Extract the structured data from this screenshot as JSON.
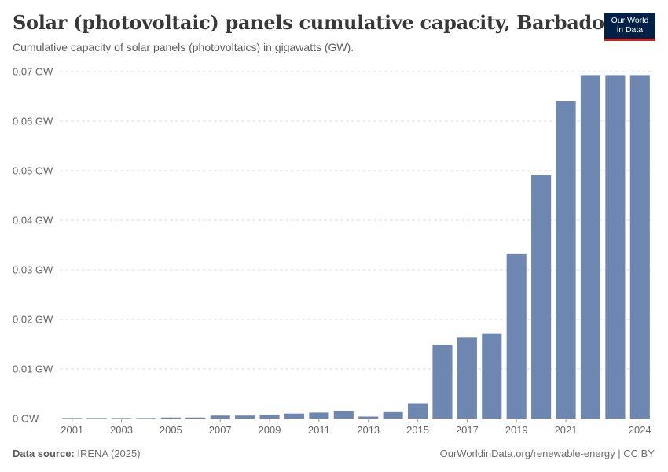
{
  "header": {
    "title": "Solar (photovoltaic) panels cumulative capacity, Barbados",
    "subtitle": "Cumulative capacity of solar panels (photovoltaics) in gigawatts (GW)."
  },
  "logo": {
    "line1": "Our World",
    "line2": "in Data",
    "bg_color": "#002147",
    "accent_color": "#ce261e"
  },
  "footer": {
    "source_label": "Data source:",
    "source_value": "IRENA (2025)",
    "right_text": "OurWorldinData.org/renewable-energy | CC BY"
  },
  "colors": {
    "bar": "#6d87b0",
    "grid": "#dddddd",
    "text": "#666666"
  },
  "chart_data": {
    "type": "bar",
    "title": "Solar (photovoltaic) panels cumulative capacity, Barbados",
    "xlabel": "",
    "ylabel": "",
    "unit": "GW",
    "ylim": [
      0,
      0.07
    ],
    "yticks": [
      0,
      0.01,
      0.02,
      0.03,
      0.04,
      0.05,
      0.06,
      0.07
    ],
    "ytick_labels": [
      "0 GW",
      "0.01 GW",
      "0.02 GW",
      "0.03 GW",
      "0.04 GW",
      "0.05 GW",
      "0.06 GW",
      "0.07 GW"
    ],
    "categories": [
      "2001",
      "2002",
      "2003",
      "2004",
      "2005",
      "2006",
      "2007",
      "2008",
      "2009",
      "2010",
      "2011",
      "2012",
      "2013",
      "2014",
      "2015",
      "2016",
      "2017",
      "2018",
      "2019",
      "2020",
      "2021",
      "2022",
      "2023",
      "2024"
    ],
    "xtick_labels": [
      "2001",
      "2003",
      "2005",
      "2007",
      "2009",
      "2011",
      "2013",
      "2015",
      "2017",
      "2019",
      "2021",
      "2024"
    ],
    "values": [
      0.0001,
      0.0001,
      0.0001,
      0.0001,
      0.0002,
      0.0002,
      0.0006,
      0.0006,
      0.0008,
      0.001,
      0.0012,
      0.0015,
      0.0004,
      0.0013,
      0.0031,
      0.0149,
      0.0163,
      0.0172,
      0.0332,
      0.0491,
      0.064,
      0.0693,
      0.0693,
      0.0693
    ],
    "grid": true,
    "legend": "none"
  }
}
